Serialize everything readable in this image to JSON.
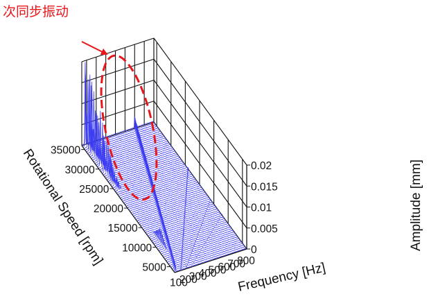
{
  "annotation": {
    "text": "次同步振动",
    "color": "#e8161b"
  },
  "chart_data": {
    "type": "waterfall-3d",
    "title": "",
    "xlabel": "Frequency [Hz]",
    "ylabel": "Rotational Speed [rpm]",
    "zlabel": "Amplitude [mm]",
    "x_ticks": [
      "100",
      "200",
      "300",
      "400",
      "500",
      "600",
      "700",
      "800"
    ],
    "y_ticks": [
      "5000",
      "10000",
      "15000",
      "20000",
      "25000",
      "30000",
      "35000"
    ],
    "z_ticks": [
      "0",
      "0.005",
      "0.01",
      "0.015",
      "0.02"
    ],
    "xlim": [
      50,
      800
    ],
    "ylim": [
      3500,
      36000
    ],
    "zlim": [
      0,
      0.02
    ],
    "line_color": "#3b3bf0",
    "grid": true,
    "subsynchronous_band_hz": [
      60,
      130
    ]
  }
}
